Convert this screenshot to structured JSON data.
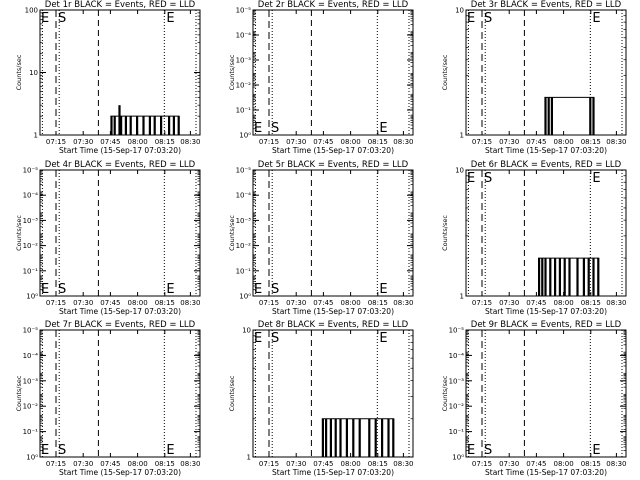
{
  "chart_data": [
    {
      "type": "bar",
      "title": "Det 1r BLACK = Events, RED = LLD",
      "ylabel": "Counts/sec",
      "xlabel": "Start Time (15-Sep-17 07:03:20)",
      "xticks": [
        "07:15",
        "07:30",
        "07:45",
        "08:00",
        "08:15",
        "08:30"
      ],
      "yticks": [
        "1",
        "10",
        "100"
      ],
      "yscale": "log",
      "ylim": [
        1,
        100
      ],
      "markers": [
        {
          "label": "S",
          "x": 0.1,
          "style": "dashed"
        },
        {
          "label": "E",
          "x": 0.777,
          "style": "dotted"
        }
      ],
      "series": [
        {
          "name": "Events",
          "values": [
            [
              0.44,
              2
            ],
            [
              0.46,
              2
            ],
            [
              0.49,
              3
            ],
            [
              0.5,
              2
            ],
            [
              0.53,
              2
            ],
            [
              0.56,
              2
            ],
            [
              0.6,
              2
            ],
            [
              0.64,
              2
            ],
            [
              0.68,
              2
            ],
            [
              0.71,
              2
            ],
            [
              0.75,
              2
            ],
            [
              0.8,
              2
            ],
            [
              0.83,
              2
            ],
            [
              0.86,
              2
            ]
          ]
        }
      ]
    },
    {
      "type": "bar",
      "title": "Det 2r BLACK = Events, RED = LLD",
      "ylabel": "Counts/sec",
      "xlabel": "Start Time (15-Sep-17 07:03:20)",
      "xticks": [
        "07:15",
        "07:30",
        "07:45",
        "08:00",
        "08:15",
        "08:30"
      ],
      "yticks": [
        "10⁰",
        "10⁻¹",
        "10⁻²",
        "10⁻³",
        "10⁻⁴",
        "10⁻⁵"
      ],
      "yscale": "log",
      "ylim": [
        1e-06,
        1
      ],
      "markers": [
        {
          "label": "S",
          "x": 0.1,
          "style": "dashed"
        },
        {
          "label": "E",
          "x": 0.777,
          "style": "dotted"
        }
      ],
      "series": [
        {
          "name": "Events",
          "values": []
        }
      ]
    },
    {
      "type": "bar",
      "title": "Det 3r BLACK = Events, RED = LLD",
      "ylabel": "Counts/sec",
      "xlabel": "Start Time (15-Sep-17 07:03:20)",
      "xticks": [
        "07:15",
        "07:30",
        "07:45",
        "08:00",
        "08:15",
        "08:30"
      ],
      "yticks": [
        "1",
        "10"
      ],
      "yscale": "log",
      "ylim": [
        1,
        10
      ],
      "markers": [
        {
          "label": "S",
          "x": 0.1,
          "style": "dashed"
        },
        {
          "label": "E",
          "x": 0.777,
          "style": "dotted"
        }
      ],
      "series": [
        {
          "name": "Events",
          "values": [
            [
              0.49,
              2
            ],
            [
              0.51,
              2
            ],
            [
              0.53,
              2
            ],
            [
              0.77,
              2
            ],
            [
              0.79,
              2
            ]
          ]
        }
      ]
    },
    {
      "type": "bar",
      "title": "Det 4r BLACK = Events, RED = LLD",
      "ylabel": "Counts/sec",
      "xlabel": "Start Time (15-Sep-17 07:03:20)",
      "xticks": [
        "07:15",
        "07:30",
        "07:45",
        "08:00",
        "08:15",
        "08:30"
      ],
      "yticks": [
        "10⁰",
        "10⁻¹",
        "10⁻²",
        "10⁻³",
        "10⁻⁴",
        "10⁻⁵"
      ],
      "yscale": "log",
      "ylim": [
        1e-06,
        1
      ],
      "markers": [
        {
          "label": "S",
          "x": 0.1,
          "style": "dashed"
        },
        {
          "label": "E",
          "x": 0.777,
          "style": "dotted"
        }
      ],
      "series": [
        {
          "name": "Events",
          "values": []
        }
      ]
    },
    {
      "type": "bar",
      "title": "Det 5r BLACK = Events, RED = LLD",
      "ylabel": "Counts/sec",
      "xlabel": "Start Time (15-Sep-17 07:03:20)",
      "xticks": [
        "07:15",
        "07:30",
        "07:45",
        "08:00",
        "08:15",
        "08:30"
      ],
      "yticks": [
        "10⁰",
        "10⁻¹",
        "10⁻²",
        "10⁻³",
        "10⁻⁴",
        "10⁻⁵"
      ],
      "yscale": "log",
      "ylim": [
        1e-06,
        1
      ],
      "markers": [
        {
          "label": "S",
          "x": 0.1,
          "style": "dashed"
        },
        {
          "label": "E",
          "x": 0.777,
          "style": "dotted"
        }
      ],
      "series": [
        {
          "name": "Events",
          "values": []
        }
      ]
    },
    {
      "type": "bar",
      "title": "Det 6r BLACK = Events, RED = LLD",
      "ylabel": "Counts/sec",
      "xlabel": "Start Time (15-Sep-17 07:03:20)",
      "xticks": [
        "07:15",
        "07:30",
        "07:45",
        "08:00",
        "08:15",
        "08:30"
      ],
      "yticks": [
        "1",
        "10"
      ],
      "yscale": "log",
      "ylim": [
        1,
        10
      ],
      "markers": [
        {
          "label": "S",
          "x": 0.1,
          "style": "dashed"
        },
        {
          "label": "E",
          "x": 0.777,
          "style": "dotted"
        }
      ],
      "series": [
        {
          "name": "Events",
          "values": [
            [
              0.45,
              2
            ],
            [
              0.47,
              2
            ],
            [
              0.49,
              2
            ],
            [
              0.52,
              2
            ],
            [
              0.55,
              2
            ],
            [
              0.58,
              2
            ],
            [
              0.61,
              2
            ],
            [
              0.64,
              2
            ],
            [
              0.69,
              2
            ],
            [
              0.73,
              2
            ],
            [
              0.76,
              2
            ],
            [
              0.79,
              2
            ],
            [
              0.82,
              2
            ]
          ]
        }
      ]
    },
    {
      "type": "bar",
      "title": "Det 7r BLACK = Events, RED = LLD",
      "ylabel": "Counts/sec",
      "xlabel": "Start Time (15-Sep-17 07:03:20)",
      "xticks": [
        "07:15",
        "07:30",
        "07:45",
        "08:00",
        "08:15",
        "08:30"
      ],
      "yticks": [
        "10⁰",
        "10⁻¹",
        "10⁻²",
        "10⁻³",
        "10⁻⁴",
        "10⁻⁵"
      ],
      "yscale": "log",
      "ylim": [
        1e-06,
        1
      ],
      "markers": [
        {
          "label": "S",
          "x": 0.1,
          "style": "dashed"
        },
        {
          "label": "E",
          "x": 0.777,
          "style": "dotted"
        }
      ],
      "series": [
        {
          "name": "Events",
          "values": []
        }
      ]
    },
    {
      "type": "bar",
      "title": "Det 8r BLACK = Events, RED = LLD",
      "ylabel": "Counts/sec",
      "xlabel": "Start Time (15-Sep-17 07:03:20)",
      "xticks": [
        "07:15",
        "07:30",
        "07:45",
        "08:00",
        "08:15",
        "08:30"
      ],
      "yticks": [
        "1",
        "10"
      ],
      "yscale": "log",
      "ylim": [
        1,
        10
      ],
      "markers": [
        {
          "label": "S",
          "x": 0.1,
          "style": "dashed"
        },
        {
          "label": "E",
          "x": 0.777,
          "style": "dotted"
        }
      ],
      "series": [
        {
          "name": "Events",
          "values": [
            [
              0.43,
              2
            ],
            [
              0.45,
              2
            ],
            [
              0.48,
              2
            ],
            [
              0.51,
              2
            ],
            [
              0.54,
              2
            ],
            [
              0.58,
              2
            ],
            [
              0.62,
              2
            ],
            [
              0.66,
              2
            ],
            [
              0.72,
              2
            ],
            [
              0.76,
              2
            ],
            [
              0.8,
              2
            ],
            [
              0.84,
              2
            ],
            [
              0.87,
              2
            ]
          ]
        }
      ]
    },
    {
      "type": "bar",
      "title": "Det 9r BLACK = Events, RED = LLD",
      "ylabel": "Counts/sec",
      "xlabel": "Start Time (15-Sep-17 07:03:20)",
      "xticks": [
        "07:15",
        "07:30",
        "07:45",
        "08:00",
        "08:15",
        "08:30"
      ],
      "yticks": [
        "10⁰",
        "10⁻¹",
        "10⁻²",
        "10⁻³",
        "10⁻⁴",
        "10⁻⁵"
      ],
      "yscale": "log",
      "ylim": [
        1e-06,
        1
      ],
      "markers": [
        {
          "label": "S",
          "x": 0.1,
          "style": "dashed"
        },
        {
          "label": "E",
          "x": 0.777,
          "style": "dotted"
        }
      ],
      "series": [
        {
          "name": "Events",
          "values": []
        }
      ]
    }
  ]
}
